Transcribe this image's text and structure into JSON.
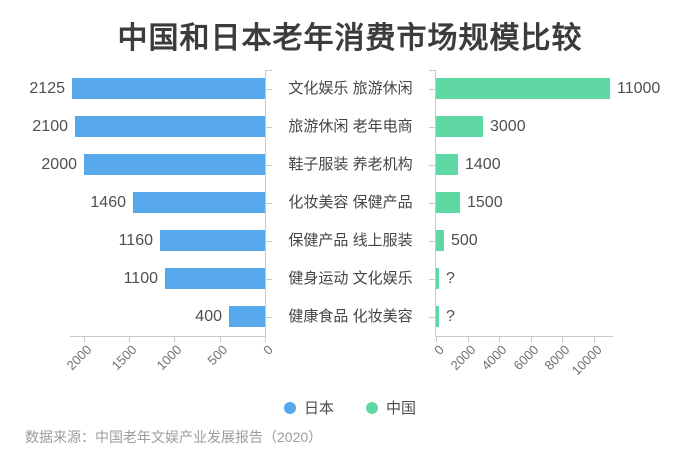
{
  "title": "中国和日本老年消费市场规模比较",
  "source_note": "数据来源：中国老年文娱产业发展报告（2020）",
  "legend": {
    "items": [
      {
        "label": "日本",
        "color": "#58a9eb"
      },
      {
        "label": "中国",
        "color": "#5fd8a5"
      }
    ]
  },
  "colors": {
    "japan_bar": "#58a9eb",
    "china_bar": "#5fd8a5",
    "axis_line": "#c8c8c8",
    "tick_label": "#707070",
    "value_label": "#4f4f4f",
    "category_label": "#454545",
    "title": "#3c3c3c",
    "source": "#9c9c9c",
    "background": "#ffffff"
  },
  "chart_data": {
    "type": "bar",
    "layout": "horizontal-bidirectional",
    "title": "中国和日本老年消费市场规模比较",
    "grid": false,
    "legend_position": "bottom",
    "categories": [
      "文化娱乐 旅游休闲",
      "旅游休闲 老年电商",
      "鞋子服装 养老机构",
      "化妆美容 保健产品",
      "保健产品 线上服装",
      "健身运动 文化娱乐",
      "健康食品 化妆美容"
    ],
    "series": [
      {
        "name": "日本",
        "side": "left",
        "color": "#58a9eb",
        "values": [
          2125,
          2100,
          2000,
          1460,
          1160,
          1100,
          400
        ],
        "value_labels": [
          "2125",
          "2100",
          "2000",
          "1460",
          "1160",
          "1100",
          "400"
        ],
        "axis_tick_values": [
          2000,
          1500,
          1000,
          500,
          0
        ],
        "axis_tick_labels": [
          "2000",
          "1500",
          "1000",
          "500",
          "0"
        ],
        "axis_range": [
          0,
          2150
        ]
      },
      {
        "name": "中国",
        "side": "right",
        "color": "#5fd8a5",
        "values": [
          11000,
          3000,
          1400,
          1500,
          500,
          null,
          null
        ],
        "value_labels": [
          "11000",
          "3000",
          "1400",
          "1500",
          "500",
          "?",
          "?"
        ],
        "axis_tick_values": [
          0,
          2000,
          4000,
          6000,
          8000,
          10000
        ],
        "axis_tick_labels": [
          "0",
          "2000",
          "4000",
          "6000",
          "8000",
          "10000"
        ],
        "axis_range": [
          0,
          11200
        ]
      }
    ]
  }
}
